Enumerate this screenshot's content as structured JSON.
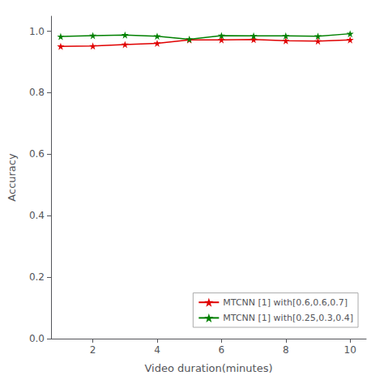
{
  "chart_data": {
    "type": "line",
    "xlabel": "Video duration(minutes)",
    "ylabel": "Accuracy",
    "x": [
      1,
      2,
      3,
      4,
      5,
      6,
      7,
      8,
      9,
      10
    ],
    "series": [
      {
        "name": "MTCNN [1] with[0.6,0.6,0.7]",
        "color": "#e00000",
        "values": [
          0.951,
          0.952,
          0.957,
          0.961,
          0.972,
          0.972,
          0.973,
          0.969,
          0.968,
          0.972
        ]
      },
      {
        "name": "MTCNN [1] with[0.25,0.3,0.4]",
        "color": "#008000",
        "values": [
          0.983,
          0.986,
          0.988,
          0.984,
          0.974,
          0.986,
          0.985,
          0.985,
          0.984,
          0.992
        ]
      }
    ],
    "xlim": [
      0.7,
      10.5
    ],
    "xticks": [
      2,
      4,
      6,
      8,
      10
    ],
    "ylim": [
      0.0,
      1.049
    ],
    "yticks": [
      {
        "value": 0,
        "label": "0.0"
      },
      0.2,
      0.4,
      0.6,
      0.8,
      {
        "value": 1,
        "label": "1.0"
      }
    ],
    "marker": "star",
    "legend": "lower right",
    "grid": false
  }
}
